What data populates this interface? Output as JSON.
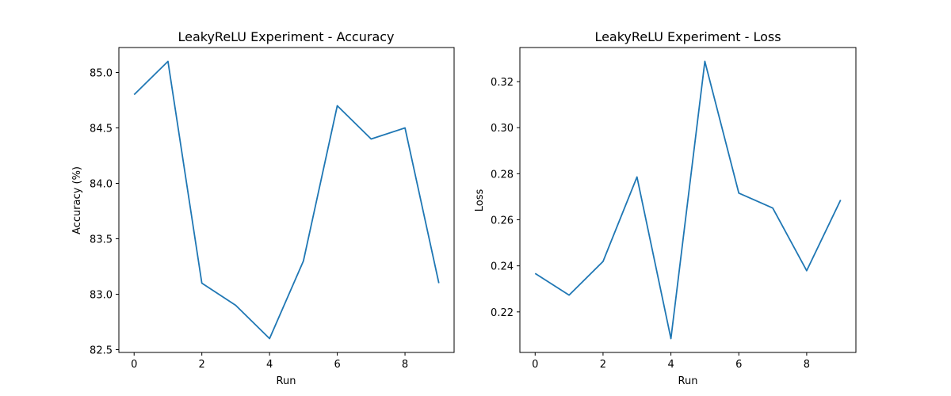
{
  "chart_data": [
    {
      "type": "line",
      "title": "LeakyReLU Experiment - Accuracy",
      "xlabel": "Run",
      "ylabel": "Accuracy (%)",
      "x": [
        0,
        1,
        2,
        3,
        4,
        5,
        6,
        7,
        8,
        9
      ],
      "series": [
        {
          "values": [
            84.8,
            85.1,
            83.1,
            82.9,
            82.6,
            83.3,
            84.7,
            84.4,
            84.5,
            83.1
          ]
        }
      ],
      "xlim": [
        -0.45,
        9.45
      ],
      "ylim": [
        82.475,
        85.225
      ],
      "xticks": [
        0,
        2,
        4,
        6,
        8
      ],
      "xtick_labels": [
        "0",
        "2",
        "4",
        "6",
        "8"
      ],
      "yticks": [
        82.5,
        83.0,
        83.5,
        84.0,
        84.5,
        85.0
      ],
      "ytick_labels": [
        "82.5",
        "83.0",
        "83.5",
        "84.0",
        "84.5",
        "85.0"
      ],
      "grid": false,
      "color": "#1f77b4"
    },
    {
      "type": "line",
      "title": "LeakyReLU Experiment - Loss",
      "xlabel": "Run",
      "ylabel": "Loss",
      "x": [
        0,
        1,
        2,
        3,
        4,
        5,
        6,
        7,
        8,
        9
      ],
      "series": [
        {
          "values": [
            0.2367,
            0.2273,
            0.2419,
            0.2786,
            0.2084,
            0.3288,
            0.2716,
            0.2651,
            0.2379,
            0.2686
          ]
        }
      ],
      "xlim": [
        -0.45,
        9.45
      ],
      "ylim": [
        0.2024,
        0.3348
      ],
      "xticks": [
        0,
        2,
        4,
        6,
        8
      ],
      "xtick_labels": [
        "0",
        "2",
        "4",
        "6",
        "8"
      ],
      "yticks": [
        0.22,
        0.24,
        0.26,
        0.28,
        0.3,
        0.32
      ],
      "ytick_labels": [
        "0.22",
        "0.24",
        "0.26",
        "0.28",
        "0.30",
        "0.32"
      ],
      "grid": false,
      "color": "#1f77b4"
    }
  ]
}
